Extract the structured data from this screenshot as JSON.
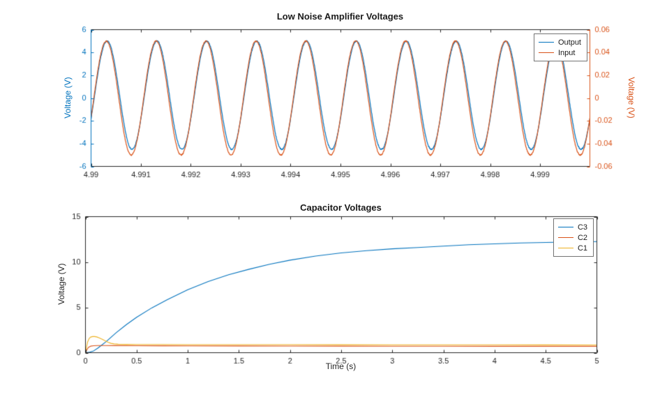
{
  "colors": {
    "axis": "#262626",
    "blue": "#0072BD",
    "orange": "#D95319",
    "yellow": "#EDB120",
    "background": "#ffffff"
  },
  "chart_data": [
    {
      "type": "line",
      "title": "Low Noise Amplifier Voltages",
      "xlabel": "",
      "x_range": [
        4.99,
        5.0
      ],
      "xtick_values": [
        4.99,
        4.991,
        4.992,
        4.993,
        4.994,
        4.995,
        4.996,
        4.997,
        4.998,
        4.999
      ],
      "xtick_labels": [
        "4.99",
        "4.991",
        "4.992",
        "4.993",
        "4.994",
        "4.995",
        "4.996",
        "4.997",
        "4.998",
        "4.999"
      ],
      "left_axis": {
        "label": "Voltage (V)",
        "range": [
          -6,
          6
        ],
        "tick_values": [
          -6,
          -4,
          -2,
          0,
          2,
          4,
          6
        ],
        "tick_labels": [
          "-6",
          "-4",
          "-2",
          "0",
          "2",
          "4",
          "6"
        ],
        "color": "#0072BD"
      },
      "right_axis": {
        "label": "Voltage (V)",
        "range": [
          -0.06,
          0.06
        ],
        "tick_values": [
          -0.06,
          -0.04,
          -0.02,
          0,
          0.02,
          0.04,
          0.06
        ],
        "tick_labels": [
          "-0.06",
          "-0.04",
          "-0.02",
          "0",
          "0.02",
          "0.04",
          "0.06"
        ],
        "color": "#D95319"
      },
      "legend_position": "northeast",
      "grid": false,
      "series": [
        {
          "name": "Output",
          "axis": "left",
          "color": "#0072BD",
          "signal": {
            "kind": "sine",
            "amplitude": 4.75,
            "offset": 0.25,
            "frequency_hz": 1000,
            "phase_rad": -0.45,
            "noise": 0.05
          }
        },
        {
          "name": "Input",
          "axis": "right",
          "color": "#D95319",
          "signal": {
            "kind": "sine",
            "amplitude": 0.05,
            "offset": 0.0,
            "frequency_hz": 1000,
            "phase_rad": -0.35,
            "noise": 0.0005
          }
        }
      ]
    },
    {
      "type": "line",
      "title": "Capacitor Voltages",
      "xlabel": "Time (s)",
      "ylabel": "Voltage (V)",
      "x_range": [
        0,
        5
      ],
      "y_range": [
        0,
        15
      ],
      "xtick_values": [
        0,
        0.5,
        1,
        1.5,
        2,
        2.5,
        3,
        3.5,
        4,
        4.5,
        5
      ],
      "xtick_labels": [
        "0",
        "0.5",
        "1",
        "1.5",
        "2",
        "2.5",
        "3",
        "3.5",
        "4",
        "4.5",
        "5"
      ],
      "ytick_values": [
        0,
        5,
        10,
        15
      ],
      "ytick_labels": [
        "0",
        "5",
        "10",
        "15"
      ],
      "legend_position": "northeast",
      "grid": false,
      "series": [
        {
          "name": "C3",
          "color": "#0072BD",
          "points": [
            [
              0,
              0
            ],
            [
              0.04,
              0.05
            ],
            [
              0.08,
              0.2
            ],
            [
              0.12,
              0.5
            ],
            [
              0.16,
              0.85
            ],
            [
              0.2,
              1.2
            ],
            [
              0.25,
              1.7
            ],
            [
              0.3,
              2.2
            ],
            [
              0.4,
              3.1
            ],
            [
              0.5,
              3.9
            ],
            [
              0.65,
              4.95
            ],
            [
              0.8,
              5.85
            ],
            [
              1.0,
              6.95
            ],
            [
              1.2,
              7.85
            ],
            [
              1.4,
              8.6
            ],
            [
              1.6,
              9.2
            ],
            [
              1.8,
              9.75
            ],
            [
              2.0,
              10.2
            ],
            [
              2.25,
              10.65
            ],
            [
              2.5,
              11.0
            ],
            [
              2.75,
              11.25
            ],
            [
              3.0,
              11.45
            ],
            [
              3.25,
              11.6
            ],
            [
              3.5,
              11.75
            ],
            [
              3.75,
              11.9
            ],
            [
              4.0,
              12.0
            ],
            [
              4.25,
              12.1
            ],
            [
              4.5,
              12.15
            ],
            [
              4.75,
              12.2
            ],
            [
              5.0,
              12.25
            ]
          ]
        },
        {
          "name": "C2",
          "color": "#D95319",
          "points": [
            [
              0,
              0
            ],
            [
              0.015,
              0.35
            ],
            [
              0.03,
              0.6
            ],
            [
              0.05,
              0.72
            ],
            [
              0.08,
              0.77
            ],
            [
              0.12,
              0.79
            ],
            [
              0.2,
              0.79
            ],
            [
              0.3,
              0.78
            ],
            [
              0.5,
              0.77
            ],
            [
              0.75,
              0.76
            ],
            [
              1.0,
              0.75
            ],
            [
              1.5,
              0.74
            ],
            [
              2.0,
              0.73
            ],
            [
              2.5,
              0.72
            ],
            [
              3.0,
              0.715
            ],
            [
              3.5,
              0.71
            ],
            [
              4.0,
              0.705
            ],
            [
              4.5,
              0.7
            ],
            [
              5.0,
              0.7
            ]
          ]
        },
        {
          "name": "C1",
          "color": "#EDB120",
          "points": [
            [
              0,
              0
            ],
            [
              0.01,
              0.6
            ],
            [
              0.02,
              1.15
            ],
            [
              0.035,
              1.55
            ],
            [
              0.05,
              1.72
            ],
            [
              0.07,
              1.78
            ],
            [
              0.09,
              1.78
            ],
            [
              0.11,
              1.74
            ],
            [
              0.13,
              1.65
            ],
            [
              0.16,
              1.5
            ],
            [
              0.19,
              1.32
            ],
            [
              0.22,
              1.15
            ],
            [
              0.25,
              1.03
            ],
            [
              0.28,
              0.97
            ],
            [
              0.32,
              0.93
            ],
            [
              0.4,
              0.91
            ],
            [
              0.5,
              0.9
            ],
            [
              0.75,
              0.9
            ],
            [
              1.0,
              0.89
            ],
            [
              1.5,
              0.885
            ],
            [
              2.0,
              0.88
            ],
            [
              2.5,
              0.875
            ],
            [
              3.0,
              0.87
            ],
            [
              3.5,
              0.865
            ],
            [
              4.0,
              0.86
            ],
            [
              4.5,
              0.855
            ],
            [
              5.0,
              0.85
            ]
          ]
        }
      ]
    }
  ]
}
